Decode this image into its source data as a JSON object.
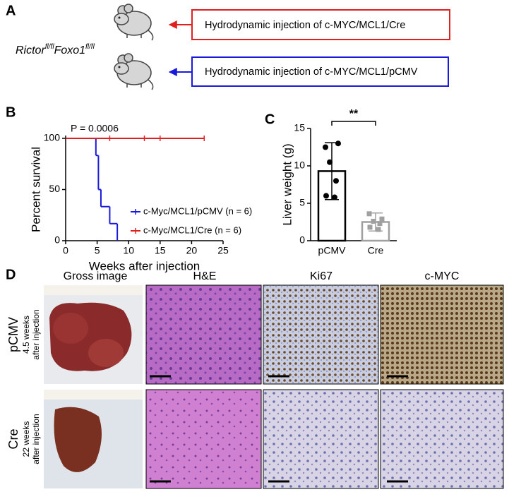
{
  "panel_labels": [
    "A",
    "B",
    "C",
    "D"
  ],
  "schematic": {
    "genotype": {
      "gene1": "Rictor",
      "sup1": "fl/fl",
      "gene2": "Foxo1",
      "sup2": "fl/fl"
    },
    "boxes": [
      "Hydrodynamic injection of c-MYC/MCL1/Cre",
      "Hydrodynamic injection of c-MYC/MCL1/pCMV"
    ]
  },
  "chart_data": [
    {
      "type": "survival",
      "annotation": "P = 0.0006",
      "xlabel": "Weeks after injection",
      "ylabel": "Percent survival",
      "xlim": [
        0,
        25
      ],
      "ylim": [
        0,
        100
      ],
      "xticks": [
        0,
        5,
        10,
        15,
        20,
        25
      ],
      "yticks": [
        0,
        50,
        100
      ],
      "series": [
        {
          "name": "c-Myc/MCL1/pCMV (n = 6)",
          "color": "#1a1adb",
          "x": [
            0,
            4.8,
            5.2,
            5.6,
            7.0,
            8.2
          ],
          "values": [
            100,
            83.3,
            50,
            33.3,
            16.7,
            0
          ],
          "censored": []
        },
        {
          "name": "c-Myc/MCL1/Cre (n = 6)",
          "color": "#e02020",
          "x": [
            0,
            22
          ],
          "values": [
            100,
            100
          ],
          "censored": [
            7,
            12.5,
            15,
            22
          ]
        }
      ]
    },
    {
      "type": "bar",
      "ylabel": "Liver weight (g)",
      "categories": [
        "pCMV",
        "Cre"
      ],
      "values": [
        9.3,
        2.5
      ],
      "errors": [
        3.8,
        1.2
      ],
      "colors": [
        "#000000",
        "#a0a0a0"
      ],
      "points": [
        [
          12.5,
          13,
          10.5,
          8,
          6,
          5.8
        ],
        [
          3.6,
          2.9,
          2.6,
          2.3,
          1.8,
          1.5
        ]
      ],
      "ylim": [
        0,
        15
      ],
      "yticks": [
        0,
        5,
        10,
        15
      ],
      "annotation": "**"
    }
  ],
  "images": {
    "columns": [
      "Gross image",
      "H&E",
      "Ki67",
      "c-MYC"
    ],
    "rows": [
      {
        "group": "pCMV",
        "time": "4.5 weeks",
        "note": "after injection"
      },
      {
        "group": "Cre",
        "time": "22 weeks",
        "note": "after injection"
      }
    ]
  }
}
